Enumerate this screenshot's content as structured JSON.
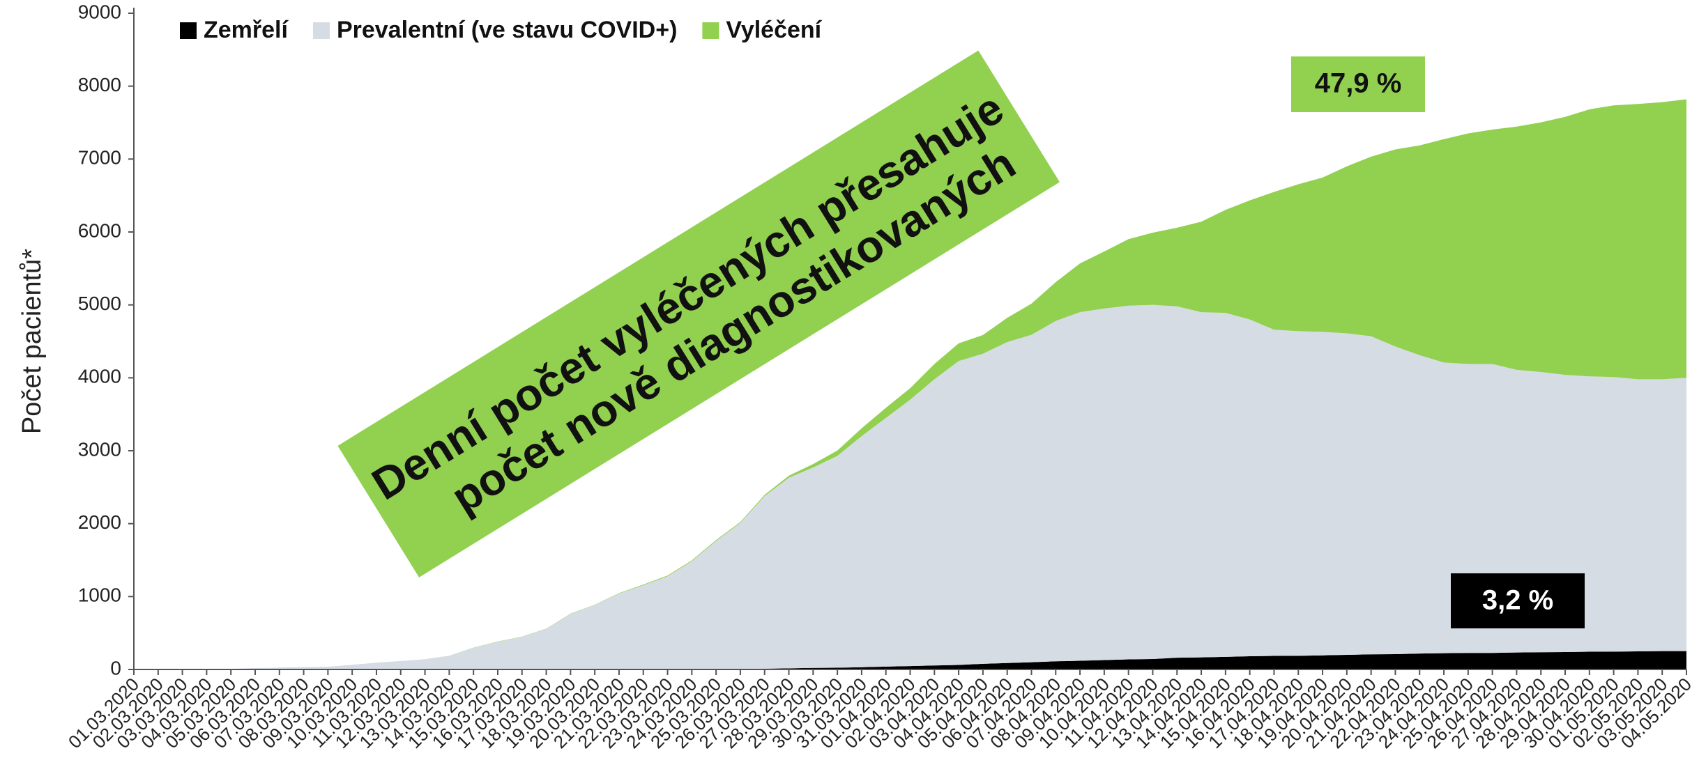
{
  "chart_data": {
    "type": "stacked_area",
    "y_label": "Počet pacientů*",
    "categories": [
      "01.03.2020",
      "02.03.2020",
      "03.03.2020",
      "04.03.2020",
      "05.03.2020",
      "06.03.2020",
      "07.03.2020",
      "08.03.2020",
      "09.03.2020",
      "10.03.2020",
      "11.03.2020",
      "12.03.2020",
      "13.03.2020",
      "14.03.2020",
      "15.03.2020",
      "16.03.2020",
      "17.03.2020",
      "18.03.2020",
      "19.03.2020",
      "20.03.2020",
      "21.03.2020",
      "22.03.2020",
      "23.03.2020",
      "24.03.2020",
      "25.03.2020",
      "26.03.2020",
      "27.03.2020",
      "28.03.2020",
      "29.03.2020",
      "30.03.2020",
      "31.03.2020",
      "01.04.2020",
      "02.04.2020",
      "03.04.2020",
      "04.04.2020",
      "05.04.2020",
      "06.04.2020",
      "07.04.2020",
      "08.04.2020",
      "09.04.2020",
      "10.04.2020",
      "11.04.2020",
      "12.04.2020",
      "13.04.2020",
      "14.04.2020",
      "15.04.2020",
      "16.04.2020",
      "17.04.2020",
      "18.04.2020",
      "19.04.2020",
      "20.04.2020",
      "21.04.2020",
      "22.04.2020",
      "23.04.2020",
      "24.04.2020",
      "25.04.2020",
      "26.04.2020",
      "27.04.2020",
      "28.04.2020",
      "29.04.2020",
      "30.04.2020",
      "01.05.2020",
      "02.05.2020",
      "03.05.2020",
      "04.05.2020"
    ],
    "series": [
      {
        "name": "Zemřelí",
        "color": "#000000",
        "values": [
          0,
          0,
          0,
          0,
          0,
          0,
          0,
          0,
          0,
          0,
          0,
          0,
          0,
          0,
          0,
          0,
          0,
          0,
          0,
          0,
          0,
          1,
          1,
          2,
          6,
          9,
          11,
          16,
          21,
          24,
          31,
          39,
          46,
          55,
          62,
          78,
          88,
          99,
          112,
          119,
          129,
          138,
          143,
          161,
          166,
          173,
          181,
          186,
          188,
          194,
          201,
          208,
          210,
          218,
          223,
          227,
          227,
          233,
          236,
          239,
          244,
          245,
          248,
          252,
          252
        ]
      },
      {
        "name": "Prevalentní (ve stavu COVID+)",
        "color": "#d6dce4",
        "values": [
          3,
          3,
          5,
          5,
          8,
          19,
          26,
          32,
          38,
          63,
          94,
          116,
          141,
          189,
          295,
          380,
          447,
          556,
          761,
          885,
          1042,
          1154,
          1277,
          1484,
          1757,
          2001,
          2367,
          2614,
          2749,
          2906,
          3169,
          3411,
          3654,
          3925,
          4168,
          4252,
          4402,
          4491,
          4668,
          4781,
          4821,
          4852,
          4857,
          4819,
          4734,
          4717,
          4619,
          4474,
          4452,
          4436,
          4409,
          4362,
          4220,
          4092,
          3987,
          3963,
          3963,
          3877,
          3844,
          3801,
          3776,
          3765,
          3732,
          3728,
          3748
        ]
      },
      {
        "name": "Vyléčení",
        "color": "#92d050",
        "values": [
          0,
          0,
          0,
          0,
          0,
          0,
          0,
          0,
          0,
          0,
          0,
          0,
          0,
          0,
          3,
          3,
          3,
          4,
          4,
          4,
          5,
          10,
          11,
          11,
          12,
          12,
          17,
          27,
          47,
          72,
          108,
          139,
          158,
          210,
          242,
          257,
          332,
          427,
          532,
          669,
          782,
          912,
          991,
          1079,
          1241,
          1413,
          1633,
          1889,
          2014,
          2116,
          2290,
          2463,
          2702,
          2877,
          3063,
          3162,
          3214,
          3335,
          3424,
          3539,
          3662,
          3727,
          3775,
          3801,
          3819
        ]
      }
    ],
    "ylim": [
      0,
      9000
    ],
    "yticks": [
      0,
      1000,
      2000,
      3000,
      4000,
      5000,
      6000,
      7000,
      8000,
      9000
    ],
    "legend": "top-left",
    "annotations": [
      "Denní počet vyléčených přesahuje",
      "počet nově diagnostikovaných",
      "47,9 %",
      "3,2 %"
    ]
  }
}
